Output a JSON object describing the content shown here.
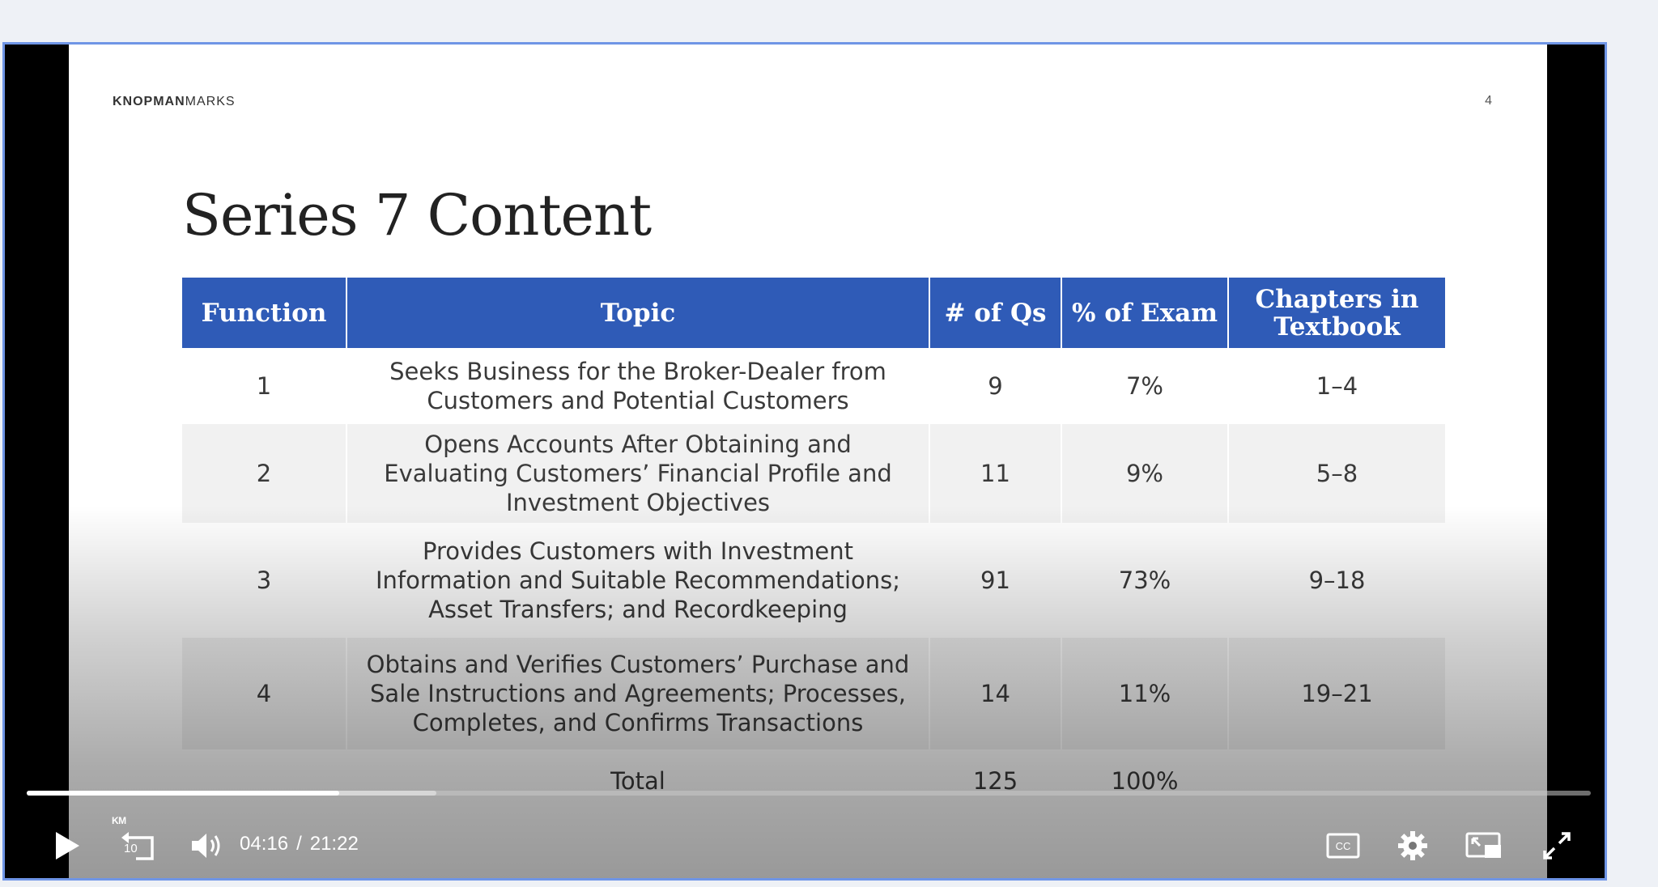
{
  "slide": {
    "brand_bold": "KNOPMAN",
    "brand_light": "MARKS",
    "page_number": "4",
    "title": "Series 7 Content"
  },
  "table": {
    "headers": [
      "Function",
      "Topic",
      "# of Qs",
      "% of Exam",
      "Chapters in Textbook"
    ],
    "rows": [
      {
        "function": "1",
        "topic": "Seeks Business for the Broker-Dealer from Customers and Potential Customers",
        "qs": "9",
        "percent": "7%",
        "chapters": "1–4"
      },
      {
        "function": "2",
        "topic": "Opens Accounts After Obtaining and Evaluating Customers’ Financial Profile and Investment Objectives",
        "qs": "11",
        "percent": "9%",
        "chapters": "5–8"
      },
      {
        "function": "3",
        "topic": "Provides Customers with Investment Information and Suitable Recommendations; Asset Transfers; and Recordkeeping",
        "qs": "91",
        "percent": "73%",
        "chapters": "9–18"
      },
      {
        "function": "4",
        "topic": "Obtains and Verifies Customers’ Purchase and Sale Instructions and Agreements; Processes, Completes, and Confirms Transactions",
        "qs": "14",
        "percent": "11%",
        "chapters": "19–21"
      }
    ],
    "total": {
      "label": "Total",
      "qs": "125",
      "percent": "100%"
    }
  },
  "player": {
    "current_time": "04:16",
    "time_separator": "/",
    "duration": "21:22",
    "played_fraction": 0.2,
    "buffered_fraction": 0.262,
    "rewind_brand": "KM",
    "rewind_seconds": "10",
    "icons": [
      "play-icon",
      "rewind-10-icon",
      "volume-icon",
      "closed-captions-icon",
      "settings-gear-icon",
      "picture-in-picture-icon",
      "fullscreen-icon"
    ]
  }
}
